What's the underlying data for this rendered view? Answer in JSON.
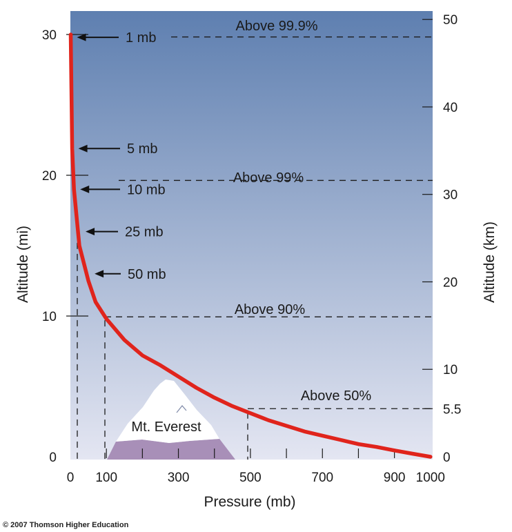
{
  "chart_data": {
    "type": "line",
    "title": "",
    "xlabel": "Pressure (mb)",
    "ylabel": "Altitude (mi)",
    "y2label": "Altitude (km)",
    "xlim": [
      0,
      1000
    ],
    "ylim": [
      0,
      30.5
    ],
    "x_tick_labels": [
      "0",
      "100",
      "300",
      "500",
      "700",
      "900",
      "1000"
    ],
    "x_tick_values": [
      0,
      100,
      300,
      500,
      700,
      900,
      1000
    ],
    "x_minor_ticks": [
      100,
      200,
      300,
      400,
      500,
      600,
      700,
      800,
      900
    ],
    "y_tick_labels": [
      "0",
      "10",
      "20",
      "30"
    ],
    "y_tick_values": [
      0,
      10,
      20,
      30
    ],
    "y2_tick_labels": [
      "0",
      "5.5",
      "10",
      "20",
      "30",
      "40",
      "50"
    ],
    "y2_tick_values_km": [
      0,
      5.5,
      10,
      20,
      30,
      40,
      50
    ],
    "series": [
      {
        "color": "#e0241c",
        "points": [
          [
            1,
            30
          ],
          [
            5,
            21.9
          ],
          [
            10,
            19
          ],
          [
            25,
            15
          ],
          [
            50,
            12.5
          ],
          [
            70,
            11
          ],
          [
            100,
            9.8
          ],
          [
            150,
            8.3
          ],
          [
            200,
            7.2
          ],
          [
            250,
            6.5
          ],
          [
            300,
            5.7
          ],
          [
            350,
            4.9
          ],
          [
            400,
            4.2
          ],
          [
            450,
            3.6
          ],
          [
            500,
            3.1
          ],
          [
            550,
            2.6
          ],
          [
            600,
            2.2
          ],
          [
            650,
            1.8
          ],
          [
            700,
            1.5
          ],
          [
            750,
            1.2
          ],
          [
            800,
            0.9
          ],
          [
            850,
            0.7
          ],
          [
            900,
            0.45
          ],
          [
            950,
            0.22
          ],
          [
            1000,
            0
          ]
        ]
      }
    ],
    "pressure_labels": [
      {
        "text": "1 mb",
        "pressure": 1,
        "altitude_mi": 29.8
      },
      {
        "text": "5 mb",
        "pressure": 5,
        "altitude_mi": 21.9
      },
      {
        "text": "10 mb",
        "pressure": 10,
        "altitude_mi": 19
      },
      {
        "text": "25 mb",
        "pressure": 25,
        "altitude_mi": 16
      },
      {
        "text": "50 mb",
        "pressure": 50,
        "altitude_mi": 13
      }
    ],
    "mass_annotations": [
      {
        "text": "Above 99.9%",
        "altitude_km": 48
      },
      {
        "text": "Above 99%",
        "altitude_km": 31.5
      },
      {
        "text": "Above 90%",
        "altitude_km": 16
      },
      {
        "text": "Above 50%",
        "altitude_km": 5.5
      }
    ],
    "landmark": {
      "text": "Mt. Everest"
    },
    "background_gradient": [
      "#5e7fb0",
      "#e4e6f2"
    ],
    "curve_color": "#e0241c"
  },
  "copyright": "© 2007 Thomson Higher Education"
}
